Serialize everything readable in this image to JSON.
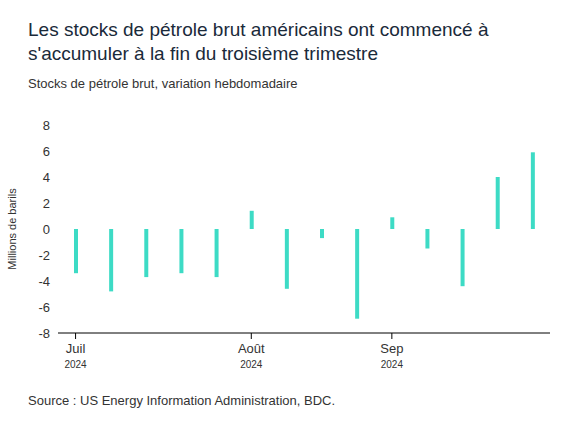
{
  "chart_data": {
    "type": "bar",
    "title": "Les stocks de pétrole brut américains ont commencé à s'accumuler à la fin du troisième trimestre",
    "subtitle": "Stocks de pétrole brut, variation hebdomadaire",
    "y_label": "Millions de barils",
    "source": "Source : US Energy Information Administration, BDC.",
    "categories": [
      "Juil 2024",
      null,
      null,
      null,
      null,
      "Août 2024",
      null,
      null,
      null,
      "Sep 2024",
      null,
      null,
      null,
      null
    ],
    "values": [
      -3.4,
      -4.8,
      -3.7,
      -3.4,
      -3.7,
      1.4,
      -4.6,
      -0.7,
      -6.9,
      0.9,
      -1.5,
      -4.4,
      4.0,
      5.9
    ],
    "color": "#3ddbc5",
    "ylim": [
      -8,
      8
    ],
    "yticks": [
      -8,
      -6,
      -4,
      -2,
      0,
      2,
      4,
      6,
      8
    ],
    "grid": false
  }
}
